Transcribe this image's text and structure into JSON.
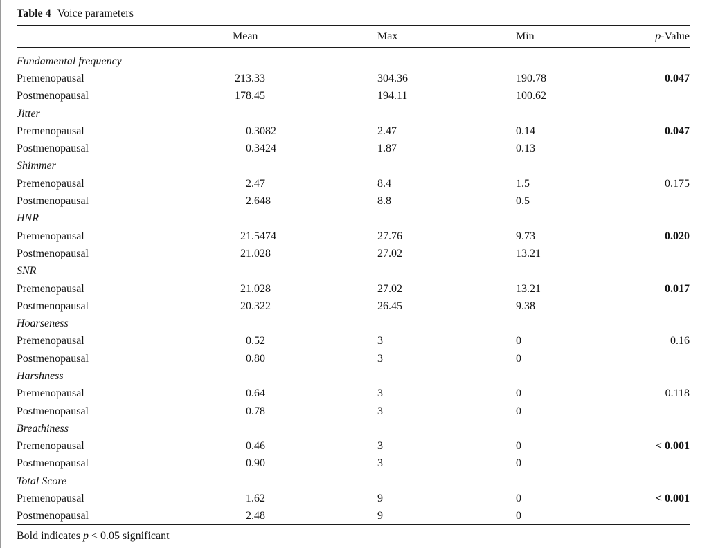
{
  "caption": {
    "label": "Table 4",
    "text": "Voice parameters"
  },
  "footnote": {
    "prefix": "Bold indicates ",
    "italic": "p",
    "suffix": " < 0.05 significant"
  },
  "table": {
    "header": {
      "param": "",
      "mean": "Mean",
      "max": "Max",
      "min": "Min",
      "p_italic": "p",
      "p_rest": "-Value"
    },
    "sections": [
      {
        "name": "Fundamental frequency",
        "rows": [
          {
            "group": "Premenopausal",
            "mean": "213.33",
            "max": "304.36",
            "min": "190.78",
            "p": "0.047",
            "p_bold": true
          },
          {
            "group": "Postmenopausal",
            "mean": "178.45",
            "max": "194.11",
            "min": "100.62",
            "p": "",
            "p_bold": false
          }
        ]
      },
      {
        "name": "Jitter",
        "rows": [
          {
            "group": "Premenopausal",
            "mean": "0.3082",
            "max": "2.47",
            "min": "0.14",
            "p": "0.047",
            "p_bold": true
          },
          {
            "group": "Postmenopausal",
            "mean": "0.3424",
            "max": "1.87",
            "min": "0.13",
            "p": "",
            "p_bold": false
          }
        ]
      },
      {
        "name": "Shimmer",
        "rows": [
          {
            "group": "Premenopausal",
            "mean": "2.47",
            "max": "8.4",
            "min": "1.5",
            "p": "0.175",
            "p_bold": false
          },
          {
            "group": "Postmenopausal",
            "mean": "2.648",
            "max": "8.8",
            "min": "0.5",
            "p": "",
            "p_bold": false
          }
        ]
      },
      {
        "name": "HNR",
        "rows": [
          {
            "group": "Premenopausal",
            "mean": "21.5474",
            "max": "27.76",
            "min": "9.73",
            "p": "0.020",
            "p_bold": true
          },
          {
            "group": "Postmenopausal",
            "mean": "21.028",
            "max": "27.02",
            "min": "13.21",
            "p": "",
            "p_bold": false
          }
        ]
      },
      {
        "name": "SNR",
        "rows": [
          {
            "group": "Premenopausal",
            "mean": "21.028",
            "max": "27.02",
            "min": "13.21",
            "p": "0.017",
            "p_bold": true
          },
          {
            "group": "Postmenopausal",
            "mean": "20.322",
            "max": "26.45",
            "min": "9.38",
            "p": "",
            "p_bold": false
          }
        ]
      },
      {
        "name": "Hoarseness",
        "rows": [
          {
            "group": "Premenopausal",
            "mean": "0.52",
            "max": "3",
            "min": "0",
            "p": "0.16",
            "p_bold": false
          },
          {
            "group": "Postmenopausal",
            "mean": "0.80",
            "max": "3",
            "min": "0",
            "p": "",
            "p_bold": false
          }
        ]
      },
      {
        "name": "Harshness",
        "rows": [
          {
            "group": "Premenopausal",
            "mean": "0.64",
            "max": "3",
            "min": "0",
            "p": "0.118",
            "p_bold": false
          },
          {
            "group": "Postmenopausal",
            "mean": "0.78",
            "max": "3",
            "min": "0",
            "p": "",
            "p_bold": false
          }
        ]
      },
      {
        "name": "Breathiness",
        "rows": [
          {
            "group": "Premenopausal",
            "mean": "0.46",
            "max": "3",
            "min": "0",
            "p": "< 0.001",
            "p_bold": true
          },
          {
            "group": "Postmenopausal",
            "mean": "0.90",
            "max": "3",
            "min": "0",
            "p": "",
            "p_bold": false
          }
        ]
      },
      {
        "name": "Total Score",
        "rows": [
          {
            "group": "Premenopausal",
            "mean": "1.62",
            "max": "9",
            "min": "0",
            "p": "< 0.001",
            "p_bold": true
          },
          {
            "group": "Postmenopausal",
            "mean": "2.48",
            "max": "9",
            "min": "0",
            "p": "",
            "p_bold": false
          }
        ]
      }
    ]
  }
}
